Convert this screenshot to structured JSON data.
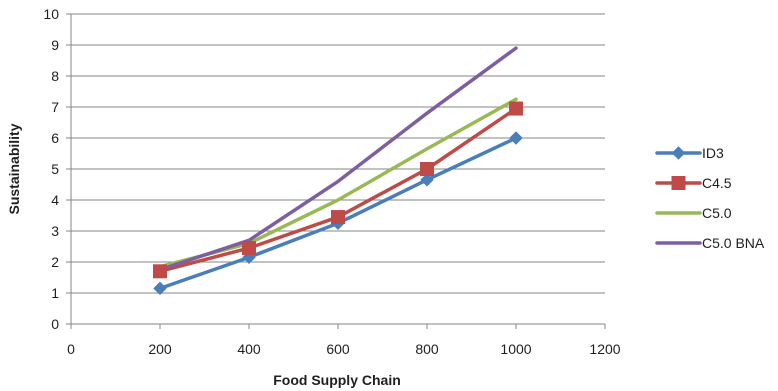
{
  "chart_data": {
    "type": "line",
    "xlabel": "Food Supply Chain",
    "ylabel": "Sustainability",
    "xlim": [
      0,
      1200
    ],
    "ylim": [
      0,
      10
    ],
    "xticks": [
      "0",
      "200",
      "400",
      "600",
      "800",
      "1000",
      "1200"
    ],
    "yticks": [
      "0",
      "1",
      "2",
      "3",
      "4",
      "5",
      "6",
      "7",
      "8",
      "9",
      "10"
    ],
    "grid": "horizontal",
    "legend_position": "right",
    "series": [
      {
        "name": "ID3",
        "color": "#4A7EBB",
        "marker": "diamond",
        "x": [
          200,
          400,
          600,
          800,
          1000
        ],
        "y": [
          1.15,
          2.15,
          3.25,
          4.65,
          6.0
        ]
      },
      {
        "name": "C4.5",
        "color": "#BE4B48",
        "marker": "square",
        "x": [
          200,
          400,
          600,
          800,
          1000
        ],
        "y": [
          1.7,
          2.45,
          3.45,
          5.0,
          6.95
        ]
      },
      {
        "name": "C5.0",
        "color": "#98B954",
        "marker": "none",
        "x": [
          200,
          400,
          600,
          800,
          1000
        ],
        "y": [
          1.85,
          2.6,
          4.0,
          5.65,
          7.25
        ]
      },
      {
        "name": "C5.0 BNA",
        "color": "#7D5FA0",
        "marker": "none",
        "x": [
          200,
          400,
          600,
          800,
          1000
        ],
        "y": [
          1.75,
          2.7,
          4.6,
          6.8,
          8.9
        ]
      }
    ]
  }
}
